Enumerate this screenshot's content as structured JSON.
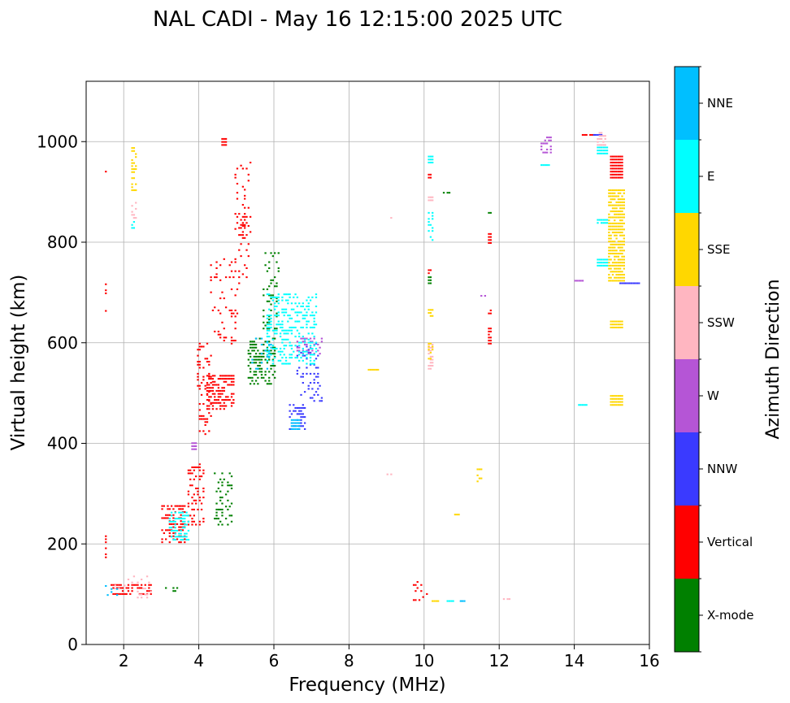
{
  "chart_data": {
    "type": "scatter",
    "title": "NAL CADI - May 16 12:15:00 2025 UTC",
    "xlabel": "Frequency (MHz)",
    "ylabel": "Virtual height (km)",
    "xlim": [
      1,
      16
    ],
    "ylim": [
      0,
      1120
    ],
    "xticks": [
      2,
      4,
      6,
      8,
      10,
      12,
      14,
      16
    ],
    "yticks": [
      0,
      200,
      400,
      600,
      800,
      1000
    ],
    "grid": true,
    "colorbar": {
      "label": "Azimuth Direction",
      "categories": [
        "X-mode",
        "Vertical",
        "NNW",
        "W",
        "SSW",
        "SSE",
        "E",
        "NNE"
      ],
      "colors": [
        "#008000",
        "#ff0000",
        "#3a3aff",
        "#b555d6",
        "#ffb6c1",
        "#ffd700",
        "#00ffff",
        "#00bfff"
      ]
    },
    "cell": {
      "df": 0.05,
      "dh": 6
    },
    "series": [
      {
        "name": "Vertical",
        "clusters": [
          [
            1.5,
            1.5,
            700,
            720,
            0.8
          ],
          [
            1.5,
            1.5,
            665,
            690,
            0.5
          ],
          [
            1.5,
            1.5,
            930,
            945,
            0.6
          ],
          [
            1.5,
            1.5,
            175,
            220,
            0.6
          ],
          [
            1.6,
            2.7,
            102,
            125,
            0.5
          ],
          [
            3.0,
            3.6,
            205,
            280,
            0.5
          ],
          [
            3.7,
            4.1,
            240,
            360,
            0.35
          ],
          [
            3.95,
            4.3,
            420,
            600,
            0.3
          ],
          [
            4.2,
            4.9,
            470,
            540,
            0.55
          ],
          [
            4.3,
            5.0,
            600,
            770,
            0.12
          ],
          [
            4.6,
            4.7,
            995,
            1010,
            0.8
          ],
          [
            4.95,
            5.35,
            720,
            960,
            0.15
          ],
          [
            5.05,
            5.2,
            830,
            840,
            0.8
          ],
          [
            9.7,
            10.1,
            90,
            130,
            0.2
          ],
          [
            10.1,
            10.15,
            740,
            748,
            0.9
          ],
          [
            10.1,
            10.15,
            930,
            940,
            0.9
          ],
          [
            11.7,
            11.75,
            600,
            635,
            0.8
          ],
          [
            11.7,
            11.75,
            800,
            820,
            0.8
          ],
          [
            11.7,
            11.75,
            660,
            670,
            0.8
          ],
          [
            14.2,
            14.5,
            1015,
            1020,
            0.9
          ],
          [
            14.95,
            15.25,
            930,
            975,
            1.0
          ]
        ]
      },
      {
        "name": "X-mode",
        "clusters": [
          [
            3.1,
            3.4,
            108,
            116,
            0.3
          ],
          [
            4.4,
            4.85,
            240,
            345,
            0.3
          ],
          [
            5.3,
            6.0,
            520,
            610,
            0.45
          ],
          [
            5.7,
            6.1,
            630,
            780,
            0.18
          ],
          [
            10.1,
            10.15,
            720,
            735,
            0.9
          ],
          [
            10.5,
            10.65,
            900,
            905,
            0.8
          ],
          [
            11.7,
            11.75,
            860,
            865,
            0.8
          ]
        ]
      },
      {
        "name": "NNW",
        "clusters": [
          [
            6.4,
            6.8,
            430,
            480,
            0.4
          ],
          [
            6.6,
            7.25,
            480,
            600,
            0.15
          ],
          [
            14.5,
            14.7,
            1015,
            1020,
            0.7
          ],
          [
            15.2,
            15.7,
            720,
            723,
            1.0
          ]
        ]
      },
      {
        "name": "W",
        "clusters": [
          [
            3.8,
            3.9,
            390,
            405,
            0.8
          ],
          [
            6.6,
            7.25,
            580,
            610,
            0.35
          ],
          [
            13.1,
            13.4,
            980,
            1012,
            0.5
          ],
          [
            14.0,
            14.2,
            725,
            728,
            0.9
          ],
          [
            11.5,
            11.6,
            695,
            700,
            0.7
          ]
        ]
      },
      {
        "name": "SSW",
        "clusters": [
          [
            1.7,
            2.7,
            95,
            140,
            0.15
          ],
          [
            2.2,
            2.3,
            850,
            880,
            0.6
          ],
          [
            10.1,
            10.2,
            550,
            600,
            0.7
          ],
          [
            10.1,
            10.2,
            885,
            895,
            0.9
          ],
          [
            14.6,
            14.8,
            995,
            1020,
            0.7
          ],
          [
            9.0,
            9.15,
            850,
            853,
            0.9
          ],
          [
            9.0,
            9.15,
            340,
            343,
            0.9
          ],
          [
            12.1,
            12.25,
            92,
            95,
            0.9
          ]
        ]
      },
      {
        "name": "SSE",
        "clusters": [
          [
            2.2,
            2.3,
            905,
            990,
            0.5
          ],
          [
            14.9,
            15.3,
            725,
            910,
            0.85
          ],
          [
            14.95,
            15.25,
            478,
            500,
            1.0
          ],
          [
            14.95,
            15.25,
            632,
            645,
            1.0
          ],
          [
            10.1,
            10.2,
            655,
            672,
            0.8
          ],
          [
            10.1,
            10.2,
            570,
            600,
            0.6
          ],
          [
            10.8,
            10.95,
            260,
            265,
            0.9
          ],
          [
            11.4,
            11.5,
            320,
            360,
            0.4
          ],
          [
            8.5,
            8.75,
            548,
            552,
            0.9
          ],
          [
            10.2,
            10.35,
            88,
            92,
            0.9
          ]
        ]
      },
      {
        "name": "E",
        "clusters": [
          [
            2.2,
            2.3,
            830,
            845,
            0.6
          ],
          [
            3.2,
            3.7,
            210,
            265,
            0.4
          ],
          [
            5.8,
            7.1,
            560,
            700,
            0.35
          ],
          [
            10.1,
            10.2,
            800,
            860,
            0.4
          ],
          [
            10.1,
            10.2,
            960,
            975,
            1.0
          ],
          [
            14.6,
            14.85,
            755,
            768,
            1.0
          ],
          [
            14.6,
            14.85,
            978,
            990,
            1.0
          ],
          [
            14.6,
            14.85,
            840,
            850,
            0.8
          ],
          [
            10.6,
            10.75,
            88,
            92,
            0.9
          ],
          [
            13.1,
            13.3,
            955,
            958,
            0.9
          ],
          [
            14.1,
            14.3,
            478,
            482,
            0.9
          ]
        ]
      },
      {
        "name": "NNE",
        "clusters": [
          [
            1.5,
            1.8,
            100,
            118,
            0.3
          ],
          [
            6.45,
            6.65,
            430,
            450,
            1.0
          ],
          [
            5.4,
            5.9,
            550,
            610,
            0.2
          ],
          [
            10.9,
            11.05,
            88,
            92,
            0.9
          ]
        ]
      }
    ]
  }
}
